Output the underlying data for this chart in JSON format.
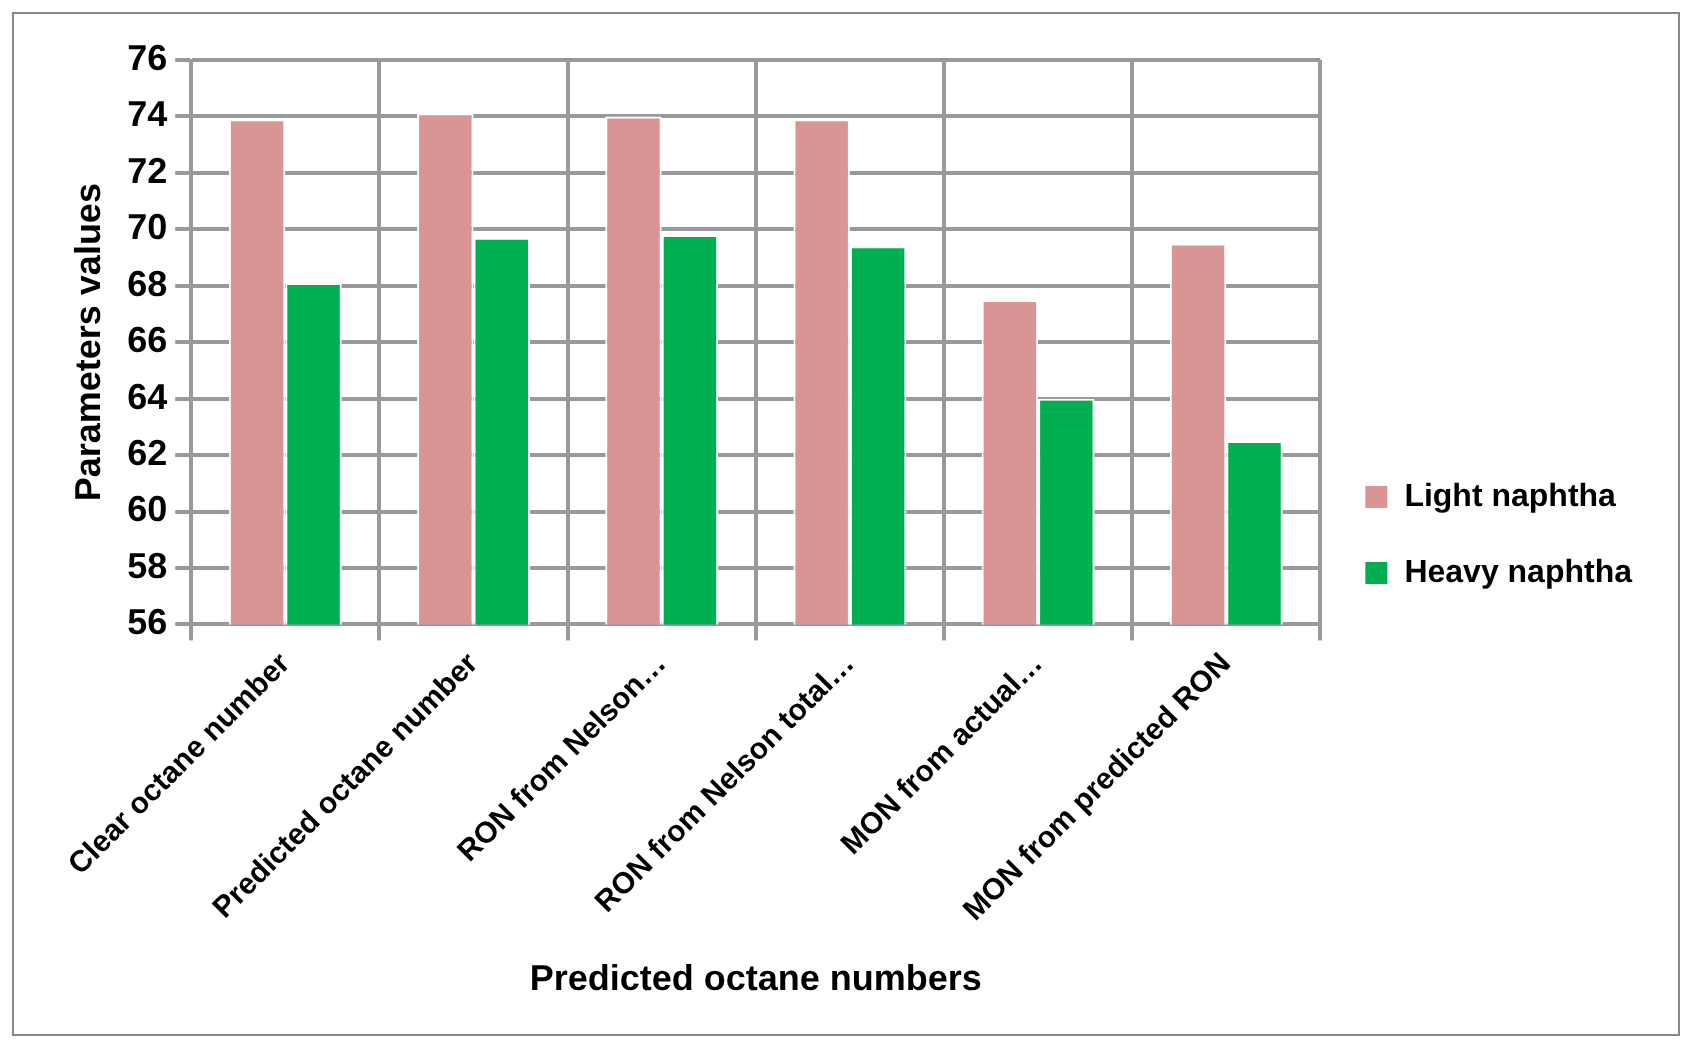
{
  "chart_data": {
    "type": "bar",
    "xlabel": "Predicted octane numbers",
    "ylabel": "Parameters values",
    "categories": [
      "Clear octane number",
      "Predicted octane number",
      "RON from Nelson…",
      "RON from Nelson total…",
      "MON from actual…",
      "MON from predicted RON"
    ],
    "series": [
      {
        "name": "Light naphtha",
        "color": "#d99594",
        "values": [
          73.9,
          74.1,
          74.0,
          73.9,
          67.5,
          69.5
        ]
      },
      {
        "name": "Heavy naphtha",
        "color": "#00b050",
        "values": [
          68.1,
          69.7,
          69.8,
          69.4,
          64.0,
          62.5
        ]
      }
    ],
    "ylim": [
      56,
      76
    ],
    "yticks": [
      56,
      58,
      60,
      62,
      64,
      66,
      68,
      70,
      72,
      74,
      76
    ],
    "grid": true,
    "legend": "right"
  }
}
